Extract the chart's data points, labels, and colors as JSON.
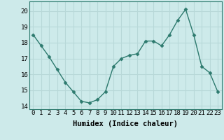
{
  "x": [
    0,
    1,
    2,
    3,
    4,
    5,
    6,
    7,
    8,
    9,
    10,
    11,
    12,
    13,
    14,
    15,
    16,
    17,
    18,
    19,
    20,
    21,
    22,
    23
  ],
  "y": [
    18.5,
    17.8,
    17.1,
    16.3,
    15.5,
    14.9,
    14.3,
    14.2,
    14.4,
    14.9,
    16.5,
    17.0,
    17.2,
    17.3,
    18.1,
    18.1,
    17.8,
    18.5,
    19.4,
    20.1,
    18.5,
    16.5,
    16.1,
    14.9
  ],
  "line_color": "#2d7a6e",
  "marker": "D",
  "marker_size": 2.5,
  "bg_color": "#cdeaea",
  "grid_color": "#b8d8d8",
  "xlabel": "Humidex (Indice chaleur)",
  "ylim": [
    13.8,
    20.6
  ],
  "xlim": [
    -0.5,
    23.5
  ],
  "yticks": [
    14,
    15,
    16,
    17,
    18,
    19,
    20
  ],
  "xticks": [
    0,
    1,
    2,
    3,
    4,
    5,
    6,
    7,
    8,
    9,
    10,
    11,
    12,
    13,
    14,
    15,
    16,
    17,
    18,
    19,
    20,
    21,
    22,
    23
  ],
  "xlabel_fontsize": 7.5,
  "tick_fontsize": 6.5,
  "linewidth": 1.0
}
